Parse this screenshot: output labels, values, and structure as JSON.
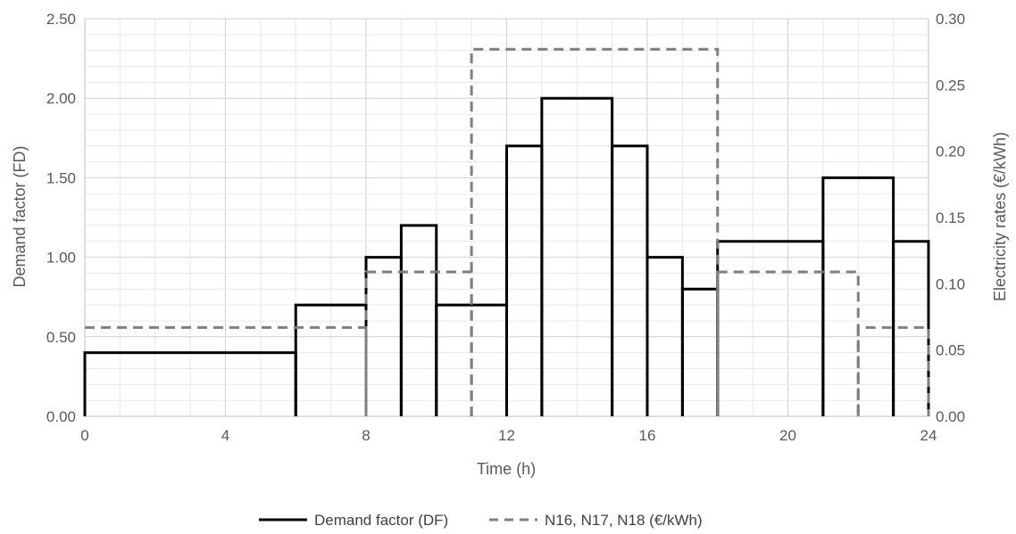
{
  "chart_data": {
    "type": "step-line",
    "title": "",
    "xlabel": "Time (h)",
    "ylabel_left": "Demand factor (FD)",
    "ylabel_right": "Electricity rates (€/kWh)",
    "xlim": [
      0,
      24
    ],
    "x_ticks": [
      0,
      4,
      8,
      12,
      16,
      20,
      24
    ],
    "x_tick_labels": [
      "0",
      "4",
      "8",
      "12",
      "16",
      "20",
      "24"
    ],
    "ylim_left": [
      0,
      2.5
    ],
    "y_left_ticks": [
      0,
      0.5,
      1.0,
      1.5,
      2.0,
      2.5
    ],
    "y_left_tick_labels": [
      "0.00",
      "0.50",
      "1.00",
      "1.50",
      "2.00",
      "2.50"
    ],
    "ylim_right": [
      0,
      0.3
    ],
    "y_right_ticks": [
      0,
      0.05,
      0.1,
      0.15,
      0.2,
      0.25,
      0.3
    ],
    "y_right_tick_labels": [
      "0.00",
      "0.05",
      "0.10",
      "0.15",
      "0.20",
      "0.25",
      "0.30"
    ],
    "grid": true,
    "legend_position": "bottom",
    "series": [
      {
        "name": "Demand factor (DF)",
        "axis": "left",
        "style": "solid",
        "color": "#000000",
        "segments": [
          {
            "x0": 0,
            "x1": 6,
            "y": 0.4
          },
          {
            "x0": 6,
            "x1": 8,
            "y": 0.7
          },
          {
            "x0": 8,
            "x1": 9,
            "y": 1.0
          },
          {
            "x0": 9,
            "x1": 10,
            "y": 1.2
          },
          {
            "x0": 10,
            "x1": 12,
            "y": 0.7
          },
          {
            "x0": 12,
            "x1": 13,
            "y": 1.7
          },
          {
            "x0": 13,
            "x1": 15,
            "y": 2.0
          },
          {
            "x0": 15,
            "x1": 16,
            "y": 1.7
          },
          {
            "x0": 16,
            "x1": 17,
            "y": 1.0
          },
          {
            "x0": 17,
            "x1": 18,
            "y": 0.8
          },
          {
            "x0": 18,
            "x1": 21,
            "y": 1.1
          },
          {
            "x0": 21,
            "x1": 23,
            "y": 1.5
          },
          {
            "x0": 23,
            "x1": 24,
            "y": 1.1
          }
        ]
      },
      {
        "name": "N16, N17, N18 (€/kWh)",
        "axis": "right",
        "style": "dashed",
        "color": "#7f7f7f",
        "segments": [
          {
            "x0": 0,
            "x1": 8,
            "y": 0.067
          },
          {
            "x0": 8,
            "x1": 11,
            "y": 0.109
          },
          {
            "x0": 11,
            "x1": 18,
            "y": 0.277
          },
          {
            "x0": 18,
            "x1": 22,
            "y": 0.109
          },
          {
            "x0": 22,
            "x1": 24,
            "y": 0.067
          }
        ]
      }
    ]
  }
}
